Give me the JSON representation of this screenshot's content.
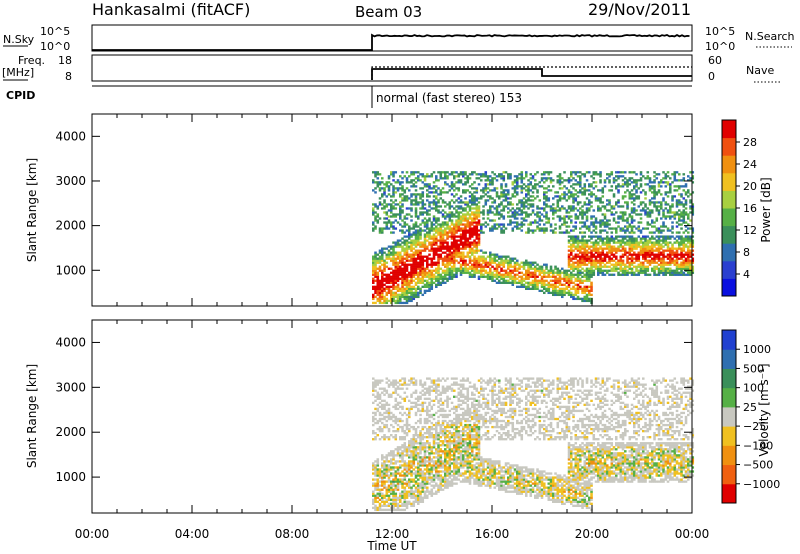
{
  "header": {
    "station": "Hankasalmi (fitACF)",
    "beam": "Beam 03",
    "date": "29/Nov/2011"
  },
  "panels": {
    "nsky": {
      "label": "N.Sky",
      "ticks": [
        "10^5",
        "10^0"
      ],
      "right_label": "N.Search",
      "right_ticks": [
        "10^5",
        "10^0"
      ]
    },
    "freq": {
      "label_line1": "Freq.",
      "label_line2": "[MHz]",
      "ticks": [
        "18",
        "8"
      ],
      "right_label": "Nave",
      "right_ticks": [
        "60",
        "0"
      ]
    },
    "cpid": {
      "label": "CPID",
      "program": "normal (fast stereo) 153"
    }
  },
  "colors": {
    "power_scale": [
      "#0a10e0",
      "#2a3fd0",
      "#2f6fb0",
      "#3a8f5a",
      "#56b046",
      "#a8d040",
      "#f0c020",
      "#f09010",
      "#f05010",
      "#e00000"
    ],
    "velocity_scale": [
      "#2040d0",
      "#2f6fb0",
      "#3a8f5a",
      "#56b046",
      "#c8c8c0",
      "#f0c020",
      "#f09010",
      "#f06010",
      "#e00000"
    ]
  },
  "chart_data": [
    {
      "type": "heatmap",
      "title": "Power",
      "ylabel": "Slant Range [km]",
      "ylim": [
        200,
        4500
      ],
      "yticks": [
        "1000",
        "2000",
        "3000",
        "4000"
      ],
      "colorbar": {
        "label": "Power [dB]",
        "ticks": [
          "4",
          "8",
          "12",
          "16",
          "20",
          "24",
          "28"
        ]
      }
    },
    {
      "type": "heatmap",
      "title": "Velocity",
      "ylabel": "Slant Range [km]",
      "ylim": [
        200,
        4500
      ],
      "yticks": [
        "1000",
        "2000",
        "3000",
        "4000"
      ],
      "colorbar": {
        "label": "Velocity [m s⁻¹]",
        "ticks": [
          "1000",
          "500",
          "100",
          "25",
          "−25",
          "−100",
          "−500",
          "−1000"
        ]
      }
    }
  ],
  "xaxis": {
    "label": "Time UT",
    "ticks": [
      "00:00",
      "04:00",
      "08:00",
      "12:00",
      "16:00",
      "20:00",
      "00:00"
    ],
    "range_hours": [
      0,
      24
    ],
    "data_start_hours": 11.2
  }
}
